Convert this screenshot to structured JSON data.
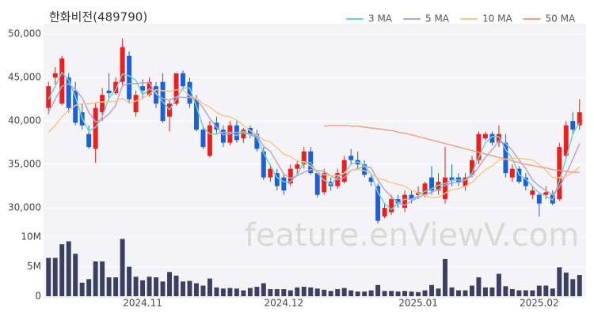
{
  "chart_data": {
    "type": "candlestick",
    "title": "한화비전(489790)",
    "watermark": "feature.enViewV.com",
    "legend_position": "top-right",
    "up_color": "#e8201f",
    "down_color": "#1f5fd6",
    "categories": [
      null,
      null,
      null,
      null,
      null,
      null,
      null,
      null,
      null,
      null,
      null,
      null,
      null,
      null,
      "2024.11",
      null,
      null,
      null,
      null,
      null,
      null,
      null,
      null,
      null,
      null,
      null,
      null,
      null,
      null,
      null,
      null,
      null,
      null,
      null,
      null,
      "2024.12",
      null,
      null,
      null,
      null,
      null,
      null,
      null,
      null,
      null,
      null,
      null,
      null,
      null,
      null,
      null,
      null,
      null,
      null,
      null,
      "2025.01",
      null,
      null,
      null,
      null,
      null,
      null,
      null,
      null,
      null,
      null,
      null,
      null,
      null,
      null,
      null,
      null,
      null,
      "2025.02",
      null,
      null,
      null,
      null,
      null,
      null
    ],
    "open": [
      41500,
      45000,
      42000,
      45000,
      43500,
      41000,
      38500,
      36800,
      41000,
      43500,
      43200,
      44500,
      47500,
      41000,
      44000,
      43000,
      44000,
      44500,
      40500,
      42000,
      45500,
      44500,
      42500,
      39000,
      36000,
      39800,
      39000,
      37500,
      39500,
      38000,
      39200,
      38500,
      36500,
      33500,
      34000,
      33500,
      32800,
      34500,
      35000,
      36500,
      34000,
      31800,
      33000,
      32500,
      33000,
      36000,
      35500,
      35000,
      33500,
      32500,
      29000,
      29500,
      31000,
      30000,
      31500,
      31500,
      31500,
      33500,
      32000,
      31000,
      33500,
      33500,
      32500,
      33800,
      35500,
      38000,
      38500,
      37500,
      37500,
      33500,
      34500,
      33500,
      31500,
      31500,
      31500,
      31500,
      31000,
      36000,
      40000,
      39500
    ],
    "high": [
      44500,
      46200,
      47500,
      45500,
      44500,
      42000,
      39500,
      42000,
      43800,
      45500,
      45000,
      49500,
      48000,
      43500,
      44800,
      45000,
      44500,
      45500,
      42500,
      45500,
      45800,
      45000,
      43000,
      39500,
      40000,
      40500,
      39500,
      40000,
      40000,
      39200,
      39500,
      39000,
      37000,
      35000,
      34500,
      34000,
      35000,
      35500,
      37000,
      37000,
      34200,
      34500,
      33500,
      34500,
      36000,
      36800,
      36500,
      35500,
      34000,
      32800,
      30500,
      31500,
      31500,
      32000,
      32000,
      32500,
      33000,
      34800,
      34000,
      37000,
      35000,
      34000,
      34000,
      36000,
      38800,
      38800,
      38800,
      39500,
      38500,
      35000,
      34800,
      34000,
      32500,
      31800,
      32500,
      32000,
      37500,
      40000,
      41000,
      42500
    ],
    "low": [
      40800,
      44200,
      41800,
      41000,
      39500,
      39000,
      36800,
      35200,
      40000,
      42500,
      43000,
      44000,
      42000,
      40500,
      42500,
      42800,
      41500,
      39800,
      38800,
      41800,
      43500,
      41500,
      38800,
      36800,
      35800,
      38500,
      37000,
      37200,
      37500,
      37500,
      38000,
      36500,
      33200,
      33000,
      32000,
      31500,
      32500,
      33800,
      34500,
      33800,
      31200,
      31500,
      32000,
      32200,
      32800,
      35000,
      34500,
      33500,
      32500,
      28200,
      28800,
      29200,
      30000,
      29500,
      30500,
      31000,
      31200,
      31500,
      31500,
      30500,
      32500,
      32500,
      32000,
      33500,
      35000,
      37800,
      37200,
      37000,
      33500,
      33000,
      32800,
      32000,
      31000,
      29000,
      31000,
      30300,
      30800,
      35500,
      38500,
      39000
    ],
    "close": [
      44000,
      45500,
      47200,
      41500,
      39800,
      39500,
      37000,
      41500,
      43000,
      43200,
      44500,
      48500,
      42500,
      43000,
      43500,
      44500,
      42000,
      40000,
      42000,
      45500,
      44000,
      42000,
      39000,
      37000,
      39500,
      39000,
      37500,
      39500,
      37800,
      39000,
      38500,
      36800,
      33500,
      34500,
      32500,
      32000,
      34500,
      35000,
      36500,
      34000,
      31500,
      34000,
      32500,
      34000,
      35500,
      35500,
      35000,
      33800,
      33000,
      28500,
      30000,
      31000,
      30500,
      31500,
      31000,
      31800,
      32800,
      32000,
      33000,
      33500,
      33200,
      33000,
      33500,
      35500,
      38500,
      38500,
      37500,
      38500,
      34000,
      34500,
      33000,
      32500,
      32000,
      30500,
      31800,
      30500,
      37000,
      39500,
      39000,
      41000
    ],
    "ylim": [
      27100,
      51200
    ],
    "yticks": [
      {
        "value": 30000,
        "label": "30,000"
      },
      {
        "value": 35000,
        "label": "35,000"
      },
      {
        "value": 40000,
        "label": "40,000"
      },
      {
        "value": 45000,
        "label": "45,000"
      },
      {
        "value": 50000,
        "label": "50,000"
      }
    ],
    "series": [
      {
        "name": "3 MA",
        "color": "#72cfd4",
        "values": [
          42500,
          44000,
          45600,
          44700,
          42800,
          40300,
          38800,
          39300,
          40500,
          42600,
          43600,
          45400,
          45200,
          44700,
          43000,
          43700,
          43300,
          42200,
          41300,
          42500,
          43800,
          43800,
          41700,
          39300,
          38500,
          38500,
          38700,
          38700,
          38300,
          38800,
          38400,
          38100,
          36300,
          34900,
          33500,
          33000,
          33000,
          33800,
          35300,
          35200,
          34000,
          33200,
          32700,
          33500,
          34000,
          35000,
          35300,
          34800,
          33900,
          31800,
          30500,
          29800,
          30500,
          31000,
          31000,
          31400,
          31900,
          32200,
          32600,
          32800,
          33200,
          33200,
          33200,
          34000,
          35800,
          37500,
          38200,
          38200,
          36700,
          35700,
          33800,
          33300,
          32500,
          31700,
          31400,
          30900,
          33100,
          35700,
          38500,
          39800
        ]
      },
      {
        "name": "5 MA",
        "color": "#b9a4cb",
        "values": [
          41000,
          42500,
          44000,
          44300,
          43600,
          42700,
          41000,
          39900,
          40200,
          40800,
          41800,
          44100,
          44300,
          44300,
          44400,
          44400,
          43100,
          42600,
          42400,
          42800,
          42700,
          42700,
          42500,
          41500,
          40300,
          39300,
          38400,
          38500,
          38700,
          38600,
          38500,
          38300,
          37100,
          36500,
          35200,
          33900,
          33400,
          33700,
          34100,
          34400,
          34300,
          34200,
          33700,
          33200,
          33500,
          34300,
          34500,
          34800,
          34600,
          33200,
          32100,
          31300,
          30600,
          30300,
          30800,
          31200,
          31500,
          31800,
          32100,
          32600,
          32900,
          32900,
          33200,
          33700,
          34700,
          35800,
          36700,
          37700,
          37400,
          36600,
          35500,
          34500,
          33200,
          32500,
          32000,
          31500,
          32400,
          33900,
          35600,
          37400
        ]
      },
      {
        "name": "10 MA",
        "color": "#f3c793",
        "values": [
          38700,
          39500,
          40500,
          41200,
          41800,
          42000,
          42000,
          42100,
          42200,
          42200,
          42300,
          42600,
          42100,
          42300,
          42600,
          43100,
          43600,
          43500,
          43400,
          43600,
          43600,
          42900,
          42600,
          42000,
          41600,
          41000,
          40600,
          40500,
          40100,
          39500,
          38900,
          38400,
          37800,
          37600,
          36900,
          36200,
          35900,
          35400,
          35300,
          34800,
          34100,
          33800,
          33700,
          33700,
          34000,
          34300,
          34400,
          34300,
          33900,
          33400,
          33200,
          32900,
          32700,
          32500,
          32000,
          31700,
          31400,
          31200,
          31200,
          31700,
          32100,
          32200,
          32500,
          32900,
          33700,
          34400,
          34800,
          35500,
          35600,
          35700,
          35700,
          35600,
          35500,
          35000,
          34300,
          33500,
          33500,
          33600,
          34100,
          34700
        ]
      },
      {
        "name": "50 MA",
        "color": "#f2a08c",
        "values": [
          null,
          null,
          null,
          null,
          null,
          null,
          null,
          null,
          null,
          null,
          null,
          null,
          null,
          null,
          null,
          null,
          null,
          null,
          null,
          null,
          null,
          null,
          null,
          null,
          null,
          null,
          null,
          null,
          null,
          null,
          null,
          null,
          null,
          null,
          null,
          null,
          null,
          null,
          null,
          null,
          null,
          39400,
          39500,
          39500,
          39500,
          39400,
          39400,
          39300,
          39200,
          39100,
          39000,
          38900,
          38700,
          38600,
          38400,
          38200,
          38000,
          37800,
          37600,
          37400,
          37200,
          37000,
          36800,
          36600,
          36400,
          36200,
          36000,
          35800,
          35600,
          35400,
          35200,
          35000,
          34900,
          34700,
          34600,
          34400,
          34300,
          34200,
          34100,
          34100
        ]
      }
    ],
    "volume": {
      "color": "#3d3f60",
      "values": [
        6.5,
        6.5,
        8.8,
        9.3,
        7.2,
        2.3,
        2.9,
        5.9,
        5.9,
        3.2,
        3.2,
        9.7,
        5.0,
        3.3,
        2.7,
        3.3,
        3.2,
        2.5,
        4.1,
        3.5,
        2.5,
        2.6,
        2.2,
        1.8,
        3.0,
        1.5,
        1.3,
        1.4,
        1.3,
        1.0,
        1.4,
        1.6,
        2.2,
        1.2,
        1.2,
        1.2,
        1.0,
        1.5,
        1.6,
        1.5,
        1.3,
        1.1,
        0.9,
        1.2,
        1.4,
        1.0,
        0.8,
        0.8,
        1.0,
        1.9,
        0.9,
        0.9,
        0.8,
        0.9,
        0.8,
        0.7,
        1.0,
        1.9,
        1.3,
        6.3,
        1.5,
        1.0,
        1.0,
        1.8,
        3.2,
        1.5,
        1.5,
        3.8,
        1.7,
        1.2,
        1.0,
        1.0,
        1.0,
        1.8,
        1.8,
        1.3,
        4.9,
        4.0,
        2.9,
        3.6
      ],
      "ylim": [
        0,
        10.7
      ],
      "yticks": [
        0,
        {
          "value": 5,
          "label": "5M"
        },
        {
          "value": 10,
          "label": "10M"
        }
      ]
    }
  }
}
